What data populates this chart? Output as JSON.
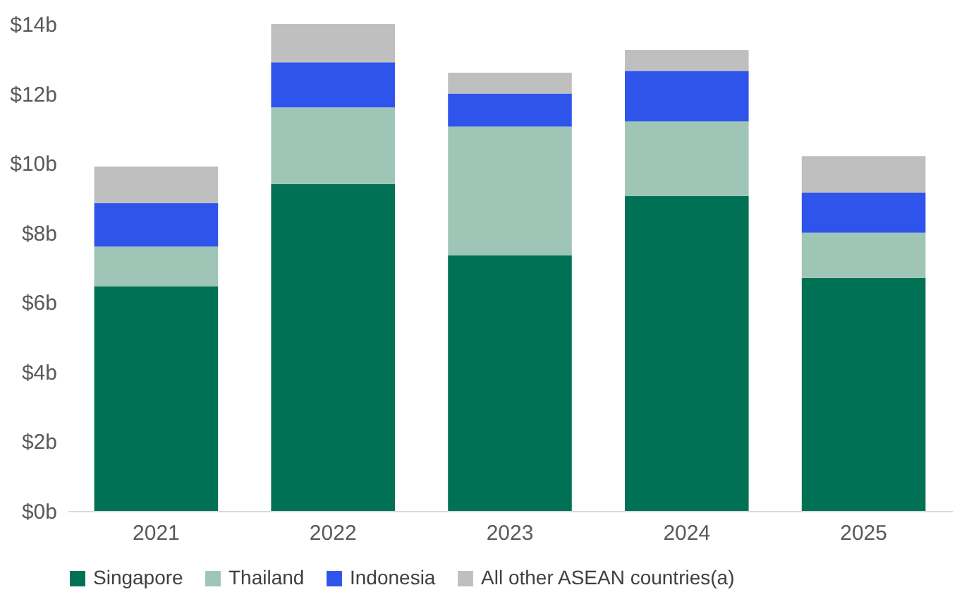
{
  "chart_data": {
    "type": "bar",
    "stacked": true,
    "categories": [
      "2021",
      "2022",
      "2023",
      "2024",
      "2025"
    ],
    "series": [
      {
        "name": "Singapore",
        "color": "#007155",
        "values": [
          6.45,
          9.4,
          7.35,
          9.05,
          6.7
        ]
      },
      {
        "name": "Thailand",
        "color": "#9fc5b6",
        "values": [
          1.15,
          2.2,
          3.7,
          2.15,
          1.3
        ]
      },
      {
        "name": "Indonesia",
        "color": "#2f54eb",
        "values": [
          1.25,
          1.3,
          0.95,
          1.45,
          1.15
        ]
      },
      {
        "name": "All other ASEAN countries(a)",
        "color": "#bfbfbf",
        "values": [
          1.05,
          1.1,
          0.6,
          0.6,
          1.05
        ]
      }
    ],
    "ylim": [
      0,
      14
    ],
    "yticks": [
      {
        "value": 0,
        "label": "$0b"
      },
      {
        "value": 2,
        "label": "$2b"
      },
      {
        "value": 4,
        "label": "$4b"
      },
      {
        "value": 6,
        "label": "$6b"
      },
      {
        "value": 8,
        "label": "$8b"
      },
      {
        "value": 10,
        "label": "$10b"
      },
      {
        "value": 12,
        "label": "$12b"
      },
      {
        "value": 14,
        "label": "$14b"
      }
    ],
    "grid": false,
    "legend": "bottom"
  }
}
